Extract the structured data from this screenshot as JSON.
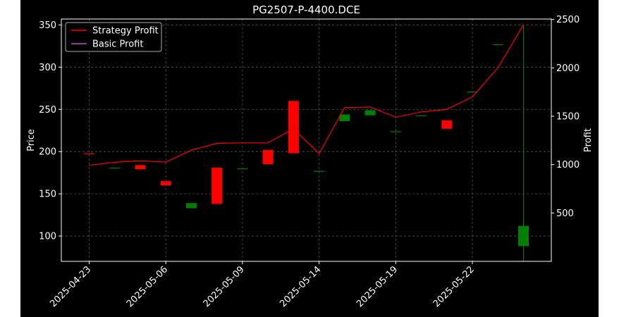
{
  "chart_data": {
    "type": "candlestick",
    "title": "PG2507-P-4400.DCE",
    "ylabel_left": "Price",
    "ylabel_right": "Profit",
    "background": "#000000",
    "grid": true,
    "legend_position": "upper-left",
    "colors": {
      "up": "#008000",
      "down": "#ff0000",
      "strategy_profit": "#ff0000",
      "basic_profit": "#cc44cc",
      "axes": "#ffffff",
      "grid": "#555555"
    },
    "x_ticks": [
      "2025-04-23",
      "2025-05-06",
      "2025-05-09",
      "2025-05-14",
      "2025-05-19",
      "2025-05-22"
    ],
    "y_left": {
      "ticks": [
        100,
        150,
        200,
        250,
        300,
        350
      ],
      "lim": [
        70,
        357
      ]
    },
    "y_right": {
      "ticks": [
        500,
        1000,
        1500,
        2000,
        2500
      ],
      "lim": [
        0,
        2505
      ]
    },
    "candles": [
      {
        "index": 0,
        "open": 198,
        "close": 197,
        "high": 198,
        "low": 197
      },
      {
        "index": 1,
        "open": 181,
        "close": 181,
        "high": 181,
        "low": 181
      },
      {
        "index": 2,
        "open": 184,
        "close": 179,
        "high": 184,
        "low": 179
      },
      {
        "index": 3,
        "open": 165,
        "close": 160,
        "high": 165,
        "low": 160
      },
      {
        "index": 4,
        "open": 133,
        "close": 139,
        "high": 139,
        "low": 133
      },
      {
        "index": 5,
        "open": 181,
        "close": 138,
        "high": 181,
        "low": 138
      },
      {
        "index": 6,
        "open": 180,
        "close": 180,
        "high": 180,
        "low": 180
      },
      {
        "index": 7,
        "open": 202,
        "close": 185,
        "high": 202,
        "low": 185
      },
      {
        "index": 8,
        "open": 260,
        "close": 198,
        "high": 260,
        "low": 198
      },
      {
        "index": 9,
        "open": 177,
        "close": 177,
        "high": 177,
        "low": 177
      },
      {
        "index": 10,
        "open": 236,
        "close": 244,
        "high": 244,
        "low": 236
      },
      {
        "index": 11,
        "open": 243,
        "close": 249,
        "high": 249,
        "low": 243
      },
      {
        "index": 12,
        "open": 224,
        "close": 224,
        "high": 224,
        "low": 224
      },
      {
        "index": 13,
        "open": 243,
        "close": 243,
        "high": 243,
        "low": 243
      },
      {
        "index": 14,
        "open": 237,
        "close": 227,
        "high": 237,
        "low": 227
      },
      {
        "index": 15,
        "open": 271,
        "close": 271,
        "high": 271,
        "low": 271
      },
      {
        "index": 16,
        "open": 327,
        "close": 327,
        "high": 327,
        "low": 327
      },
      {
        "index": 17,
        "open": 88,
        "close": 112,
        "high": 350,
        "low": 70
      }
    ],
    "series": [
      {
        "name": "Strategy Profit",
        "axis": "right",
        "values": [
          993,
          1024,
          1040,
          1025,
          1150,
          1220,
          1225,
          1225,
          1370,
          1115,
          1590,
          1595,
          1490,
          1545,
          1570,
          1700,
          2000,
          2445
        ]
      },
      {
        "name": "Basic Profit",
        "axis": "right",
        "values": []
      }
    ]
  }
}
